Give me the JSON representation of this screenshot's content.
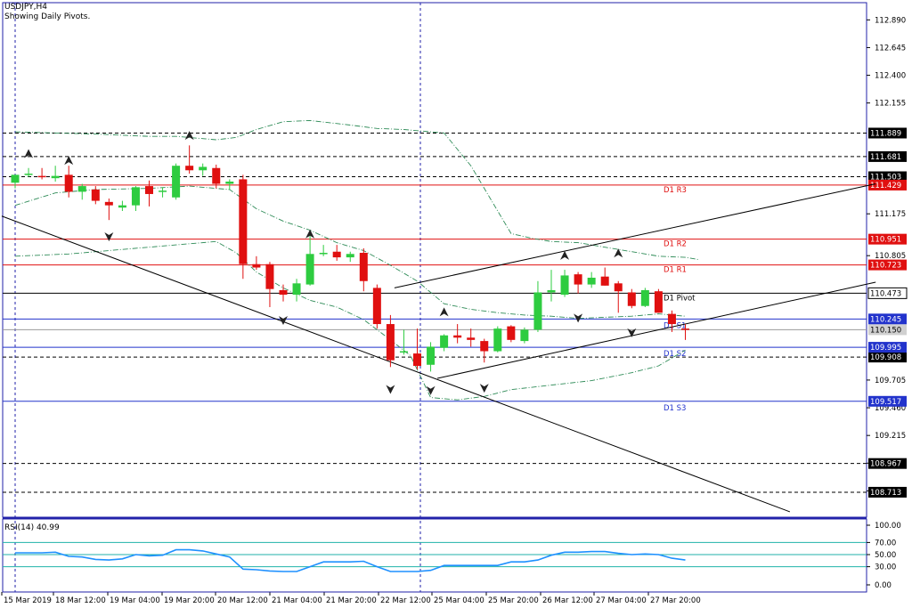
{
  "header": {
    "symbol": "USDJPY,H4",
    "subtitle": "Showing Daily Pivots."
  },
  "rsi": {
    "label": "RSI(14) 40.99",
    "ticks": [
      "100.00",
      "70.00",
      "50.00",
      "30.00",
      "0.00"
    ]
  },
  "colors": {
    "bull": "#2ecc40",
    "bear": "#e01010",
    "resistance": "#e01010",
    "pivot": "#000000",
    "support": "#2233cc",
    "bands": "#2e8b57",
    "rsi_line": "#1e90ff",
    "rsi_levels": "#20b2aa"
  },
  "chart_data": {
    "type": "candlestick",
    "symbol": "USDJPY",
    "timeframe": "H4",
    "ylim": [
      108.5,
      113.05
    ],
    "y_ticks": [
      "112.890",
      "112.645",
      "112.400",
      "112.155",
      "111.175",
      "110.805",
      "109.705",
      "109.460",
      "109.215",
      "108.970",
      "108.725"
    ],
    "x_ticks": [
      "15 Mar 2019",
      "18 Mar 12:00",
      "19 Mar 04:00",
      "19 Mar 20:00",
      "20 Mar 12:00",
      "21 Mar 04:00",
      "21 Mar 20:00",
      "22 Mar 12:00",
      "25 Mar 04:00",
      "25 Mar 20:00",
      "26 Mar 12:00",
      "27 Mar 04:00",
      "27 Mar 20:00"
    ],
    "pivot_levels": [
      {
        "label": "D1 R3",
        "value": 111.429,
        "kind": "resistance"
      },
      {
        "label": "D1 R2",
        "value": 110.951,
        "kind": "resistance"
      },
      {
        "label": "D1 R1",
        "value": 110.723,
        "kind": "resistance"
      },
      {
        "label": "D1 Pivot",
        "value": 110.473,
        "kind": "pivot"
      },
      {
        "label": "D1 S1",
        "value": 110.245,
        "kind": "support"
      },
      {
        "label": "D1 S2",
        "value": 109.995,
        "kind": "support"
      },
      {
        "label": "D1 S3",
        "value": 109.517,
        "kind": "support"
      }
    ],
    "dashed_levels": [
      "111.889",
      "111.681",
      "111.503",
      "109.908",
      "108.967",
      "108.713"
    ],
    "current_price": "110.150",
    "candles": [
      {
        "o": 111.45,
        "h": 111.52,
        "l": 111.4,
        "c": 111.52
      },
      {
        "o": 111.52,
        "h": 111.58,
        "l": 111.5,
        "c": 111.53
      },
      {
        "o": 111.51,
        "h": 111.58,
        "l": 111.48,
        "c": 111.5
      },
      {
        "o": 111.49,
        "h": 111.6,
        "l": 111.46,
        "c": 111.51
      },
      {
        "o": 111.52,
        "h": 111.6,
        "l": 111.32,
        "c": 111.37
      },
      {
        "o": 111.37,
        "h": 111.44,
        "l": 111.3,
        "c": 111.42
      },
      {
        "o": 111.39,
        "h": 111.42,
        "l": 111.26,
        "c": 111.29
      },
      {
        "o": 111.28,
        "h": 111.31,
        "l": 111.12,
        "c": 111.25
      },
      {
        "o": 111.23,
        "h": 111.29,
        "l": 111.2,
        "c": 111.25
      },
      {
        "o": 111.25,
        "h": 111.42,
        "l": 111.2,
        "c": 111.41
      },
      {
        "o": 111.42,
        "h": 111.47,
        "l": 111.24,
        "c": 111.35
      },
      {
        "o": 111.37,
        "h": 111.41,
        "l": 111.32,
        "c": 111.38
      },
      {
        "o": 111.32,
        "h": 111.62,
        "l": 111.3,
        "c": 111.6
      },
      {
        "o": 111.6,
        "h": 111.78,
        "l": 111.53,
        "c": 111.56
      },
      {
        "o": 111.56,
        "h": 111.62,
        "l": 111.51,
        "c": 111.59
      },
      {
        "o": 111.58,
        "h": 111.61,
        "l": 111.4,
        "c": 111.44
      },
      {
        "o": 111.44,
        "h": 111.48,
        "l": 111.39,
        "c": 111.46
      },
      {
        "o": 111.48,
        "h": 111.52,
        "l": 110.6,
        "c": 110.73
      },
      {
        "o": 110.73,
        "h": 110.8,
        "l": 110.68,
        "c": 110.7
      },
      {
        "o": 110.73,
        "h": 110.75,
        "l": 110.35,
        "c": 110.51
      },
      {
        "o": 110.5,
        "h": 110.55,
        "l": 110.4,
        "c": 110.46
      },
      {
        "o": 110.46,
        "h": 110.6,
        "l": 110.4,
        "c": 110.56
      },
      {
        "o": 110.55,
        "h": 110.99,
        "l": 110.54,
        "c": 110.82
      },
      {
        "o": 110.83,
        "h": 110.9,
        "l": 110.8,
        "c": 110.83
      },
      {
        "o": 110.84,
        "h": 110.9,
        "l": 110.76,
        "c": 110.79
      },
      {
        "o": 110.79,
        "h": 110.84,
        "l": 110.75,
        "c": 110.82
      },
      {
        "o": 110.83,
        "h": 110.87,
        "l": 110.49,
        "c": 110.58
      },
      {
        "o": 110.52,
        "h": 110.55,
        "l": 110.16,
        "c": 110.2
      },
      {
        "o": 110.2,
        "h": 110.28,
        "l": 109.82,
        "c": 109.88
      },
      {
        "o": 109.95,
        "h": 110.15,
        "l": 109.93,
        "c": 109.96
      },
      {
        "o": 109.94,
        "h": 110.16,
        "l": 109.8,
        "c": 109.83
      },
      {
        "o": 109.84,
        "h": 110.04,
        "l": 109.78,
        "c": 110.0
      },
      {
        "o": 109.99,
        "h": 110.11,
        "l": 109.96,
        "c": 110.1
      },
      {
        "o": 110.1,
        "h": 110.2,
        "l": 110.03,
        "c": 110.08
      },
      {
        "o": 110.08,
        "h": 110.16,
        "l": 110.0,
        "c": 110.06
      },
      {
        "o": 110.05,
        "h": 110.07,
        "l": 109.86,
        "c": 109.96
      },
      {
        "o": 109.96,
        "h": 110.18,
        "l": 109.95,
        "c": 110.16
      },
      {
        "o": 110.18,
        "h": 110.19,
        "l": 110.04,
        "c": 110.06
      },
      {
        "o": 110.05,
        "h": 110.17,
        "l": 110.03,
        "c": 110.15
      },
      {
        "o": 110.15,
        "h": 110.58,
        "l": 110.13,
        "c": 110.48
      },
      {
        "o": 110.48,
        "h": 110.68,
        "l": 110.4,
        "c": 110.5
      },
      {
        "o": 110.46,
        "h": 110.68,
        "l": 110.44,
        "c": 110.63
      },
      {
        "o": 110.64,
        "h": 110.66,
        "l": 110.47,
        "c": 110.55
      },
      {
        "o": 110.55,
        "h": 110.66,
        "l": 110.52,
        "c": 110.61
      },
      {
        "o": 110.62,
        "h": 110.7,
        "l": 110.54,
        "c": 110.54
      },
      {
        "o": 110.56,
        "h": 110.58,
        "l": 110.3,
        "c": 110.49
      },
      {
        "o": 110.48,
        "h": 110.51,
        "l": 110.34,
        "c": 110.36
      },
      {
        "o": 110.36,
        "h": 110.52,
        "l": 110.35,
        "c": 110.5
      },
      {
        "o": 110.49,
        "h": 110.51,
        "l": 110.3,
        "c": 110.3
      },
      {
        "o": 110.29,
        "h": 110.32,
        "l": 110.13,
        "c": 110.2
      },
      {
        "o": 110.16,
        "h": 110.2,
        "l": 110.06,
        "c": 110.15
      }
    ],
    "bollinger_upper": [
      [
        0,
        111.9
      ],
      [
        3,
        111.89
      ],
      [
        6,
        111.88
      ],
      [
        10,
        111.86
      ],
      [
        12,
        111.86
      ],
      [
        15,
        111.83
      ],
      [
        16.5,
        111.85
      ],
      [
        18,
        111.92
      ],
      [
        20,
        111.99
      ],
      [
        22,
        112.0
      ],
      [
        25,
        111.96
      ],
      [
        27,
        111.93
      ],
      [
        29,
        111.92
      ],
      [
        32,
        111.89
      ],
      [
        34,
        111.6
      ],
      [
        36,
        111.2
      ],
      [
        37,
        111.0
      ],
      [
        38.5,
        110.96
      ],
      [
        40,
        110.93
      ],
      [
        42,
        110.92
      ],
      [
        44,
        110.88
      ],
      [
        46,
        110.84
      ],
      [
        48,
        110.8
      ],
      [
        50,
        110.79
      ],
      [
        51,
        110.77
      ]
    ],
    "bollinger_middle": [
      [
        0,
        111.25
      ],
      [
        3,
        111.36
      ],
      [
        6,
        111.39
      ],
      [
        10,
        111.4
      ],
      [
        13,
        111.42
      ],
      [
        16,
        111.39
      ],
      [
        18,
        111.22
      ],
      [
        20,
        111.11
      ],
      [
        22,
        111.03
      ],
      [
        24,
        110.92
      ],
      [
        26,
        110.85
      ],
      [
        28,
        110.72
      ],
      [
        30,
        110.58
      ],
      [
        32,
        110.38
      ],
      [
        34,
        110.33
      ],
      [
        36,
        110.3
      ],
      [
        38,
        110.28
      ],
      [
        40,
        110.27
      ],
      [
        42,
        110.25
      ],
      [
        44,
        110.26
      ],
      [
        46,
        110.27
      ],
      [
        48,
        110.29
      ],
      [
        50,
        110.27
      ]
    ],
    "bollinger_lower": [
      [
        0,
        110.8
      ],
      [
        4,
        110.82
      ],
      [
        8,
        110.86
      ],
      [
        12,
        110.9
      ],
      [
        15,
        110.93
      ],
      [
        16.5,
        110.83
      ],
      [
        18,
        110.66
      ],
      [
        20,
        110.52
      ],
      [
        22,
        110.41
      ],
      [
        24,
        110.35
      ],
      [
        26,
        110.24
      ],
      [
        28,
        110.06
      ],
      [
        29.5,
        109.92
      ],
      [
        31,
        109.55
      ],
      [
        33,
        109.53
      ],
      [
        35,
        109.56
      ],
      [
        37,
        109.62
      ],
      [
        40,
        109.66
      ],
      [
        43,
        109.7
      ],
      [
        46,
        109.77
      ],
      [
        48,
        109.83
      ],
      [
        50,
        109.97
      ]
    ],
    "trendlines": [
      {
        "from": [
          -1,
          111.155
        ],
        "to": [
          57.8,
          108.54
        ]
      },
      {
        "from": [
          28.3,
          110.52
        ],
        "to": [
          64.2,
          111.44
        ]
      },
      {
        "from": [
          31.5,
          109.72
        ],
        "to": [
          64.2,
          110.57
        ]
      }
    ],
    "fractals_up": [
      [
        1,
        111.7
      ],
      [
        4,
        111.64
      ],
      [
        13,
        111.86
      ],
      [
        22,
        110.99
      ],
      [
        32,
        110.3
      ],
      [
        41,
        110.8
      ],
      [
        45,
        110.82
      ]
    ],
    "fractals_down": [
      [
        7,
        110.98
      ],
      [
        20,
        110.24
      ],
      [
        28,
        109.63
      ],
      [
        31,
        109.62
      ],
      [
        35,
        109.64
      ],
      [
        42,
        110.26
      ],
      [
        46,
        110.13
      ]
    ],
    "rsi": [
      53,
      53,
      53,
      54,
      47,
      46,
      42,
      41,
      43,
      50,
      48,
      49,
      58,
      58,
      56,
      51,
      46,
      26,
      25,
      23,
      22,
      22,
      30,
      38,
      38,
      38,
      39,
      30,
      22,
      22,
      22,
      24,
      32,
      32,
      32,
      32,
      32,
      38,
      38,
      41,
      49,
      54,
      54,
      55,
      55,
      52,
      50,
      51,
      50,
      44,
      41
    ]
  }
}
